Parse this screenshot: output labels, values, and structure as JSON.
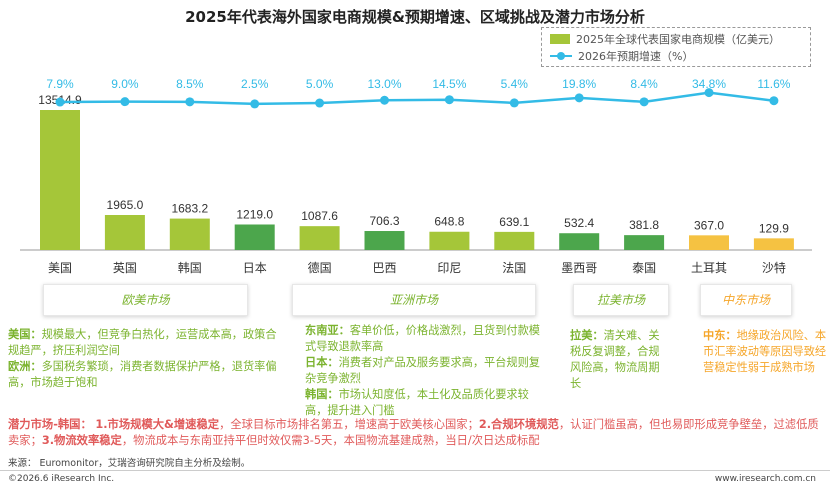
{
  "title": "2025年代表海外国家电商规模&预期增速、区域挑战及潜力市场分析",
  "legend": {
    "bar_label": "2025年全球代表国家电商规模（亿美元）",
    "line_label": "2026年预期增速（%）"
  },
  "chart_data": {
    "type": "bar+line",
    "categories": [
      "美国",
      "英国",
      "韩国",
      "日本",
      "德国",
      "巴西",
      "印尼",
      "法国",
      "墨西哥",
      "泰国",
      "土耳其",
      "沙特"
    ],
    "series": [
      {
        "name": "2025年全球代表国家电商规模（亿美元）",
        "type": "bar",
        "values": [
          13514.9,
          1965.0,
          1683.2,
          1219.0,
          1087.6,
          706.3,
          648.8,
          639.1,
          532.4,
          381.8,
          367.0,
          129.9
        ],
        "value_labels": [
          "13514.9",
          "1965.0",
          "1683.2",
          "1219.0",
          "1087.6",
          "706.3",
          "648.8",
          "639.1",
          "532.4",
          "381.8",
          "367.0",
          "129.9"
        ],
        "bar_colors": [
          "#a5c639",
          "#a5c639",
          "#a5c639",
          "#4ca64c",
          "#a5c639",
          "#4ca64c",
          "#a5c639",
          "#a5c639",
          "#4ca64c",
          "#4ca64c",
          "#f5c242",
          "#f5c242"
        ]
      },
      {
        "name": "2026年预期增速（%）",
        "type": "line",
        "values": [
          7.9,
          9.0,
          8.5,
          2.5,
          5.0,
          13.0,
          14.5,
          5.4,
          19.8,
          8.4,
          34.8,
          11.6
        ],
        "value_labels": [
          "7.9%",
          "9.0%",
          "8.5%",
          "2.5%",
          "5.0%",
          "13.0%",
          "14.5%",
          "5.4%",
          "19.8%",
          "8.4%",
          "34.8%",
          "11.6%"
        ],
        "color": "#33bbe6"
      }
    ]
  },
  "regions": [
    {
      "label": "欧美市场",
      "color": "#7bb32e"
    },
    {
      "label": "亚洲市场",
      "color": "#7bb32e"
    },
    {
      "label": "拉美市场",
      "color": "#7bb32e"
    },
    {
      "label": "中东市场",
      "color": "#f5a62a"
    }
  ],
  "descriptions": {
    "europe_us": {
      "us_head": "美国：",
      "us_text": "规模最大，但竞争白热化，运营成本高，政策合规趋严，挤压利润空间",
      "eu_head": "欧洲：",
      "eu_text": "多国税务繁琐，消费者数据保护严格，退货率偏高，市场趋于饱和"
    },
    "asia": {
      "sea_head": "东南亚：",
      "sea_text": "客单价低，价格战激烈，且货到付款模式导致退款率高",
      "jp_head": "日本：",
      "jp_text": "消费者对产品及服务要求高，平台规则复杂竞争激烈",
      "kr_head": "韩国：",
      "kr_text": "市场认知度低，本土化及品质化要求较高，提升进入门槛"
    },
    "latam": {
      "head": "拉美：",
      "text": "清关难、关税反复调整，合规风险高，物流周期长"
    },
    "mideast": {
      "head": "中东：",
      "text": "地缘政治风险、本币汇率波动等原因导致经营稳定性弱于成熟市场"
    }
  },
  "potential": {
    "head": "潜力市场-韩国：",
    "p1_head": "1.市场规模大&增速稳定",
    "p1_text": "，全球目标市场排名第五，增速高于欧美核心国家；",
    "p2_head": "2.合规环境规范",
    "p2_text": "，认证门槛虽高，但也易即形成竞争壁垒，过滤低质卖家；",
    "p3_head": "3.物流效率稳定",
    "p3_text": "，物流成本与东南亚持平但时效仅需3-5天，本国物流基建成熟，当日/次日达成标配"
  },
  "footer": {
    "source": "来源：  Euromonitor，艾瑞咨询研究院自主分析及绘制。",
    "copyright": "©2026.6 iResearch Inc.",
    "website": "www.iresearch.com.cn"
  }
}
